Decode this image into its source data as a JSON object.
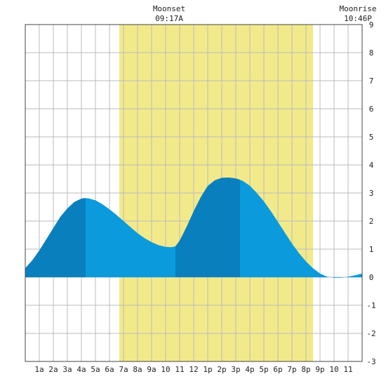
{
  "chart_data": {
    "type": "area",
    "title": "",
    "xlabel": "",
    "ylabel": "",
    "x_unit": "hour of day",
    "xlim": [
      0,
      24
    ],
    "ylim": [
      -3,
      9
    ],
    "y_ticks": [
      "-3",
      "-2",
      "-1",
      "0",
      "1",
      "2",
      "3",
      "4",
      "5",
      "6",
      "7",
      "8",
      "9"
    ],
    "x_ticks": [
      {
        "hour": 1,
        "label": "1a"
      },
      {
        "hour": 2,
        "label": "2a"
      },
      {
        "hour": 3,
        "label": "3a"
      },
      {
        "hour": 4,
        "label": "4a"
      },
      {
        "hour": 5,
        "label": "5a"
      },
      {
        "hour": 6,
        "label": "6a"
      },
      {
        "hour": 7,
        "label": "7a"
      },
      {
        "hour": 8,
        "label": "8a"
      },
      {
        "hour": 9,
        "label": "9a"
      },
      {
        "hour": 10,
        "label": "10"
      },
      {
        "hour": 11,
        "label": "11"
      },
      {
        "hour": 12,
        "label": "12"
      },
      {
        "hour": 13,
        "label": "1p"
      },
      {
        "hour": 14,
        "label": "2p"
      },
      {
        "hour": 15,
        "label": "3p"
      },
      {
        "hour": 16,
        "label": "4p"
      },
      {
        "hour": 17,
        "label": "5p"
      },
      {
        "hour": 18,
        "label": "6p"
      },
      {
        "hour": 19,
        "label": "7p"
      },
      {
        "hour": 20,
        "label": "8p"
      },
      {
        "hour": 21,
        "label": "9p"
      },
      {
        "hour": 22,
        "label": "10"
      },
      {
        "hour": 23,
        "label": "11"
      }
    ],
    "series": [
      {
        "x": [
          0,
          0.5,
          1,
          1.5,
          2,
          2.5,
          3,
          3.5,
          4,
          4.3,
          4.5,
          5,
          5.5,
          6,
          6.5,
          7,
          7.5,
          8,
          8.5,
          9,
          9.5,
          10,
          10.4,
          10.7,
          11,
          11.5,
          12,
          12.5,
          13,
          13.5,
          14,
          14.5,
          15,
          15.3,
          15.5,
          16,
          16.5,
          17,
          17.5,
          18,
          18.5,
          19,
          19.5,
          20,
          20.5,
          21,
          21.5,
          22,
          22.5,
          23,
          23.5,
          24
        ],
        "y": [
          0.32,
          0.6,
          0.95,
          1.35,
          1.75,
          2.15,
          2.45,
          2.68,
          2.8,
          2.82,
          2.81,
          2.74,
          2.6,
          2.42,
          2.22,
          2.0,
          1.78,
          1.57,
          1.39,
          1.25,
          1.14,
          1.08,
          1.07,
          1.1,
          1.3,
          1.8,
          2.35,
          2.85,
          3.25,
          3.45,
          3.54,
          3.55,
          3.52,
          3.47,
          3.43,
          3.26,
          3.0,
          2.7,
          2.35,
          1.97,
          1.58,
          1.2,
          0.86,
          0.56,
          0.32,
          0.13,
          0.02,
          -0.02,
          -0.02,
          0.02,
          0.07,
          0.13
        ]
      }
    ],
    "dark_bands": [
      [
        0,
        4.3
      ],
      [
        10.7,
        15.3
      ]
    ],
    "moon_band": {
      "start": 6.7,
      "end": 20.5,
      "color": "#f2ea8a"
    },
    "colors": {
      "fill_light": "#0b9bdc",
      "fill_dark": "#0a7fbd",
      "grid": "#bbbbbb",
      "border": "#444444"
    },
    "grid": true,
    "header": {
      "left_title": "Moonset",
      "left_time": "09:17A",
      "left_time_hour": 9.28,
      "right_title": "Moonrise",
      "right_time": "10:46P"
    }
  }
}
